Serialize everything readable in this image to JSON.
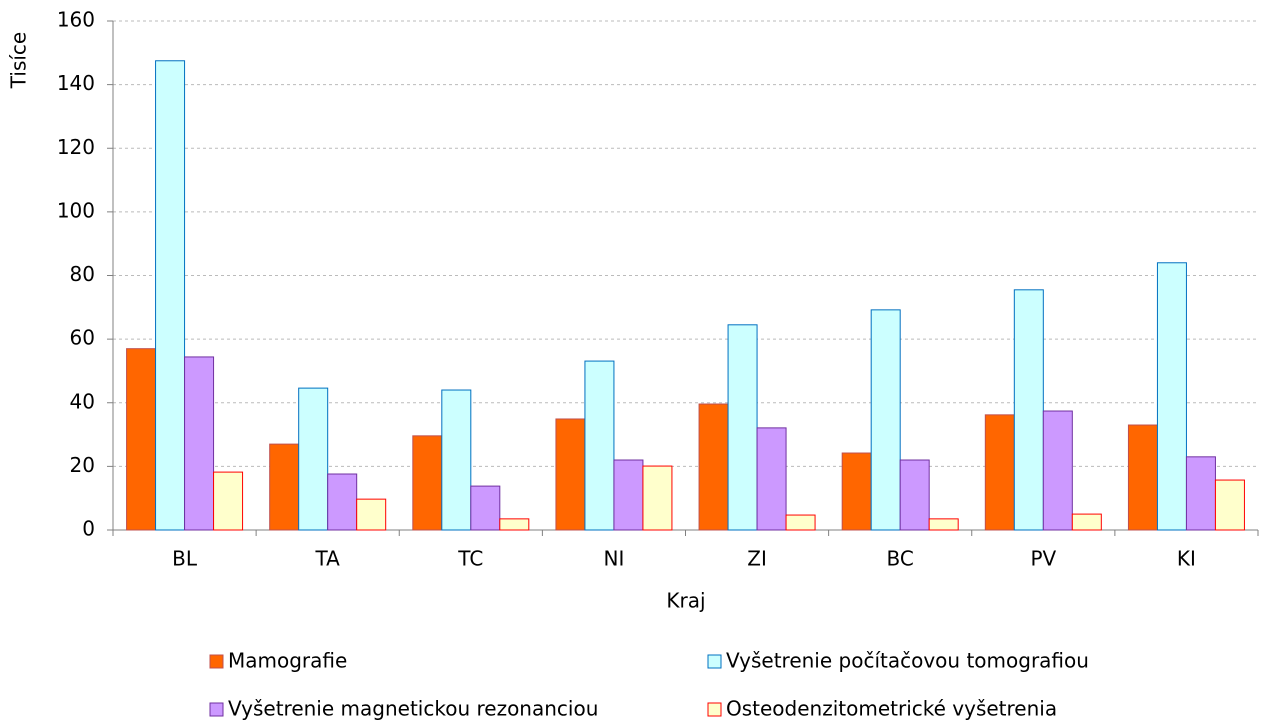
{
  "chart_data": {
    "type": "bar",
    "y_label": "Tisíce",
    "x_label": "Kraj",
    "categories": [
      "BL",
      "TA",
      "TC",
      "NI",
      "ZI",
      "BC",
      "PV",
      "KI"
    ],
    "series": [
      {
        "name": "Mamografie",
        "color": "#ff6600",
        "stroke": "#c0504d",
        "values": [
          57,
          27,
          29.6,
          34.9,
          39.6,
          24.2,
          36.2,
          33
        ]
      },
      {
        "name": "Vyšetrenie počítačovou tomografiou",
        "color": "#ccffff",
        "stroke": "#0070c0",
        "values": [
          147.5,
          44.6,
          44,
          53.1,
          64.5,
          69.2,
          75.5,
          84
        ]
      },
      {
        "name": "Vyšetrenie magnetickou rezonanciou",
        "color": "#cc99ff",
        "stroke": "#7030a0",
        "values": [
          54.4,
          17.6,
          13.8,
          22,
          32.1,
          22,
          37.4,
          23
        ]
      },
      {
        "name": "Osteodenzitometrické vyšetrenia",
        "color": "#ffffcc",
        "stroke": "#ff0000",
        "values": [
          18.2,
          9.7,
          3.5,
          20.1,
          4.7,
          3.5,
          5,
          15.7
        ]
      }
    ],
    "ylim": [
      0,
      160
    ],
    "yticks": [
      0,
      20,
      40,
      60,
      80,
      100,
      120,
      140,
      160
    ],
    "grid": true
  }
}
